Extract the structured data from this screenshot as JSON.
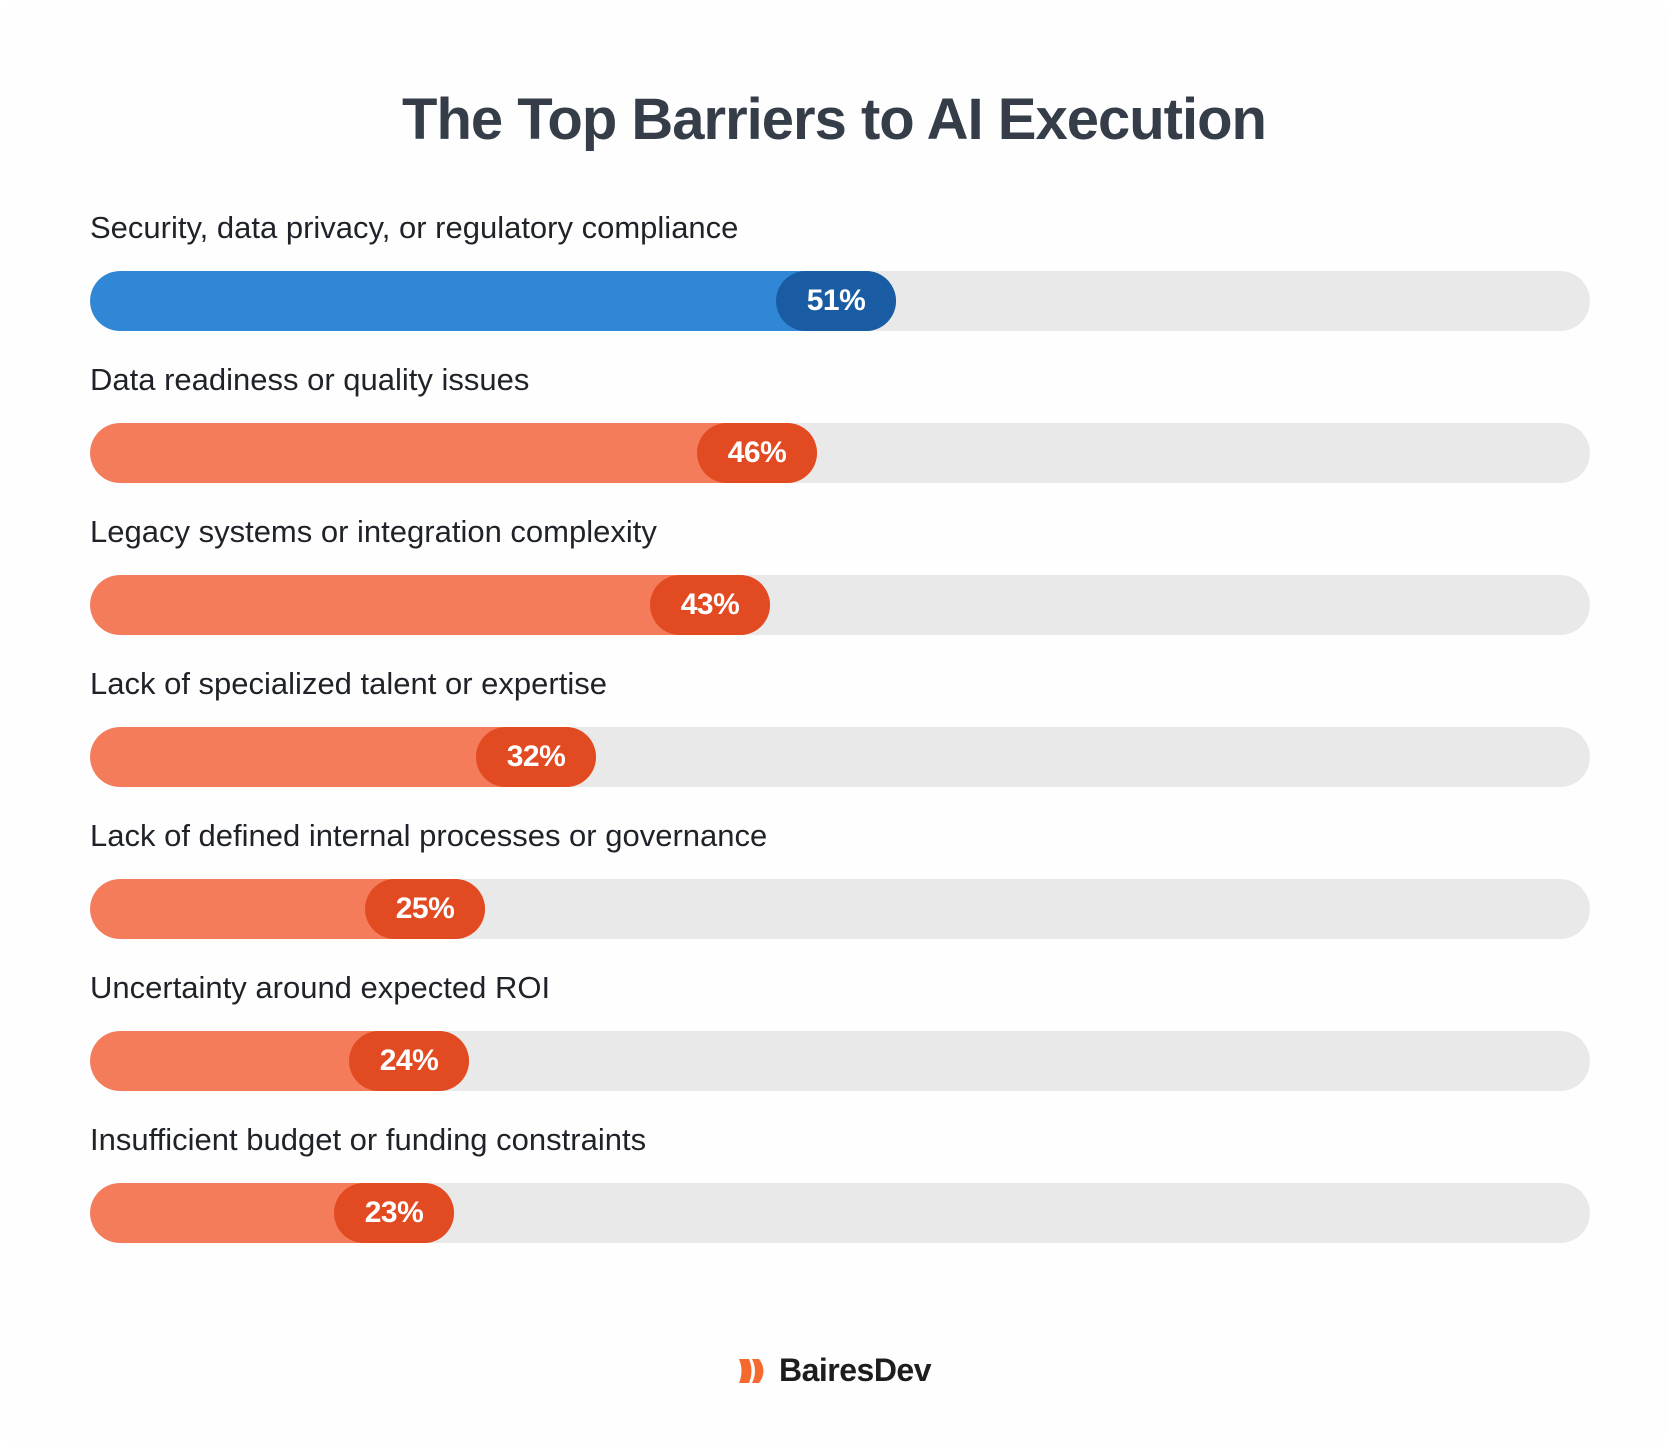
{
  "colors": {
    "highlight_fill": "#3087d6",
    "highlight_badge": "#1a5ca3",
    "default_fill": "#f47c5a",
    "default_badge": "#e24a22",
    "track": "#e9e9e9",
    "title": "#353d49",
    "logo_orange": "#f46a2e"
  },
  "brand": {
    "name": "BairesDev",
    "icon": "bairesdev-logo-icon"
  },
  "chart_data": {
    "type": "bar",
    "orientation": "horizontal",
    "title": "The Top Barriers to AI Execution",
    "xlabel": "",
    "ylabel": "",
    "xlim": [
      0,
      100
    ],
    "grid": false,
    "categories": [
      "Security, data privacy, or regulatory compliance",
      "Data readiness or quality issues",
      "Legacy systems or integration complexity",
      "Lack of specialized talent or expertise",
      "Lack of defined internal processes or governance",
      "Uncertainty around expected ROI",
      "Insufficient budget or funding constraints"
    ],
    "values": [
      51,
      46,
      43,
      32,
      25,
      24,
      23
    ],
    "value_labels": [
      "51%",
      "46%",
      "43%",
      "32%",
      "25%",
      "24%",
      "23%"
    ],
    "highlighted_index": 0
  }
}
